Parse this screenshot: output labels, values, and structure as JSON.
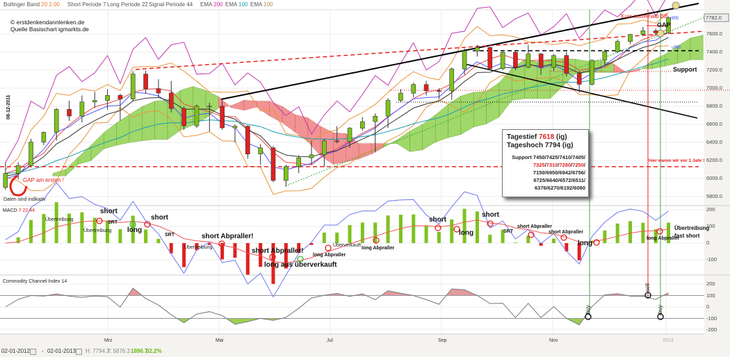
{
  "header": {
    "bollinger": {
      "label": "Bollinger Band",
      "period": "20",
      "dev": "2.00"
    },
    "short_periode": {
      "label": "Short Periode",
      "value": "7"
    },
    "long_periode": {
      "label": "Long Periode",
      "value": "22"
    },
    "signal_periode": {
      "label": "Signal Periode",
      "value": "44"
    },
    "ema1": {
      "label": "EMA",
      "value": "200"
    },
    "ema2": {
      "label": "EMA",
      "value": "100"
    },
    "ema3": {
      "label": "EMA",
      "value": "100"
    }
  },
  "credit": {
    "line1": "© erstdenkendannlenken.de",
    "line2": "Quelle Basischart igmarkts.de"
  },
  "infobox": {
    "tagestief_label": "Tagestief",
    "tagestief_value": "7618",
    "tagestief_suffix": "(ig)",
    "tageshoch": "Tageshoch 7794 (ig)",
    "support_label": "Support",
    "support_line1": "7450/7425/7410/7405/",
    "support_line2_red": [
      "7325",
      "7310",
      "7280",
      "7250"
    ],
    "support_line3": "7150/6950/6942/6756/",
    "support_line4": "6725/6640/6572/6511/",
    "support_line5": "6376/6270/6192/6080"
  },
  "annotations_main": {
    "kurs_ausserhalb": "Kurs außerhalb BB",
    "obb": "oBB",
    "gap": "GAP",
    "ubb": "uBB",
    "support": "Support",
    "gap_am_ersten": "GAP am ersten !",
    "daten_indikativ": "Daten sind indikativ",
    "date_marker": "08-12-2011",
    "vor_1_jahr": "hier waren wir vor 1 Jahr !"
  },
  "macd_panel": {
    "title": "MACD",
    "p1": "7",
    "p2": "22",
    "p3": "44",
    "annotations": [
      "Übertreibung",
      "Übertreibung",
      "short",
      "SRT",
      "long",
      "short",
      "SRT",
      "short Abpraller!",
      "Übertreibung",
      "short Abpraller!",
      "long aus überverkauft",
      "Überverkauft",
      "long Abpraller",
      "long Abpraller",
      "short",
      "long",
      "short",
      "SRT",
      "short Abpraller",
      "short Abpraller",
      "long",
      "Übertreibung",
      "fast short",
      "long Abpraller"
    ]
  },
  "cci_panel": {
    "title": "Commodity Channel Index",
    "period": "14",
    "signals": [
      "buy",
      "sell",
      "buy"
    ]
  },
  "footer": {
    "from": "02-01-2012",
    "sep": "-",
    "to": "02-01-2013",
    "high": "H: 7794.3",
    "low": "T: 5876.3",
    "diff": "1896.7",
    "pct": "32.2%"
  },
  "colors": {
    "up": "#7dc21e",
    "down": "#e02020",
    "macd_line": "#6f78f0",
    "signal_line": "#ee5555",
    "bb": "#e8943a",
    "ema200": "#c038b0",
    "ema100": "#1a9bb0"
  },
  "chart_data": {
    "type": "candlestick",
    "price_axis": {
      "ticks": [
        "7600.0",
        "7400.0",
        "7200.0",
        "7000.0",
        "6800.0",
        "6600.0",
        "6400.0",
        "6200.0",
        "6000.0",
        "5800.0"
      ],
      "last_price": "7782.0",
      "range": [
        5800,
        7900
      ]
    },
    "x_ticks": [
      "Mrz",
      "Mai",
      "Jul",
      "Sep",
      "Nov",
      "2013"
    ],
    "dates": [
      "2012-01-02",
      "2012-01-09",
      "2012-01-16",
      "2012-01-23",
      "2012-01-30",
      "2012-02-06",
      "2012-02-13",
      "2012-02-20",
      "2012-02-27",
      "2012-03-05",
      "2012-03-12",
      "2012-03-19",
      "2012-03-26",
      "2012-04-02",
      "2012-04-09",
      "2012-04-16",
      "2012-04-23",
      "2012-04-30",
      "2012-05-07",
      "2012-05-14",
      "2012-05-21",
      "2012-05-28",
      "2012-06-04",
      "2012-06-11",
      "2012-06-18",
      "2012-06-25",
      "2012-07-02",
      "2012-07-09",
      "2012-07-16",
      "2012-07-23",
      "2012-07-30",
      "2012-08-06",
      "2012-08-13",
      "2012-08-20",
      "2012-08-27",
      "2012-09-03",
      "2012-09-10",
      "2012-09-17",
      "2012-09-24",
      "2012-10-01",
      "2012-10-08",
      "2012-10-15",
      "2012-10-22",
      "2012-10-29",
      "2012-11-05",
      "2012-11-12",
      "2012-11-19",
      "2012-11-26",
      "2012-12-03",
      "2012-12-10",
      "2012-12-17",
      "2012-12-24",
      "2012-12-31"
    ],
    "ohlc": [
      [
        5900,
        6180,
        5876,
        6057
      ],
      [
        6057,
        6180,
        5990,
        6143
      ],
      [
        6143,
        6440,
        6140,
        6404
      ],
      [
        6404,
        6520,
        6370,
        6512
      ],
      [
        6512,
        6780,
        6420,
        6766
      ],
      [
        6766,
        6860,
        6640,
        6692
      ],
      [
        6692,
        6920,
        6620,
        6848
      ],
      [
        6848,
        6960,
        6780,
        6864
      ],
      [
        6864,
        6990,
        6760,
        6921
      ],
      [
        6921,
        6940,
        6640,
        6880
      ],
      [
        6880,
        7190,
        6860,
        7157
      ],
      [
        7157,
        7194,
        6940,
        6995
      ],
      [
        6995,
        7100,
        6900,
        6947
      ],
      [
        6947,
        7080,
        6730,
        6775
      ],
      [
        6775,
        6800,
        6540,
        6583
      ],
      [
        6583,
        6820,
        6560,
        6801
      ],
      [
        6801,
        6840,
        6520,
        6801
      ],
      [
        6801,
        6860,
        6540,
        6561
      ],
      [
        6561,
        6600,
        6400,
        6579
      ],
      [
        6579,
        6590,
        6220,
        6271
      ],
      [
        6271,
        6380,
        6150,
        6339
      ],
      [
        6339,
        6360,
        5960,
        5978
      ],
      [
        5978,
        6150,
        5914,
        6131
      ],
      [
        6131,
        6260,
        6060,
        6229
      ],
      [
        6229,
        6420,
        6150,
        6263
      ],
      [
        6263,
        6440,
        6130,
        6416
      ],
      [
        6416,
        6580,
        6390,
        6410
      ],
      [
        6410,
        6570,
        6340,
        6557
      ],
      [
        6557,
        6680,
        6530,
        6630
      ],
      [
        6630,
        6720,
        6290,
        6690
      ],
      [
        6690,
        6890,
        6560,
        6865
      ],
      [
        6865,
        6990,
        6840,
        6945
      ],
      [
        6945,
        7060,
        6900,
        7041
      ],
      [
        7041,
        7080,
        6920,
        6971
      ],
      [
        6971,
        7000,
        6880,
        6970
      ],
      [
        6970,
        7230,
        6870,
        7214
      ],
      [
        7214,
        7440,
        7150,
        7412
      ],
      [
        7412,
        7480,
        7350,
        7451
      ],
      [
        7451,
        7460,
        7200,
        7216
      ],
      [
        7216,
        7420,
        7200,
        7398
      ],
      [
        7398,
        7410,
        7200,
        7232
      ],
      [
        7232,
        7480,
        7220,
        7380
      ],
      [
        7380,
        7390,
        7150,
        7231
      ],
      [
        7231,
        7380,
        7190,
        7363
      ],
      [
        7363,
        7400,
        7130,
        7163
      ],
      [
        7163,
        7190,
        6950,
        7043
      ],
      [
        7043,
        7320,
        7030,
        7309
      ],
      [
        7309,
        7430,
        7260,
        7405
      ],
      [
        7405,
        7540,
        7390,
        7518
      ],
      [
        7518,
        7600,
        7490,
        7596
      ],
      [
        7596,
        7680,
        7580,
        7636
      ],
      [
        7636,
        7660,
        7580,
        7612
      ],
      [
        7612,
        7794,
        7600,
        7779
      ]
    ],
    "macd_axis": {
      "ticks": [
        "200",
        "100",
        "0",
        "-100"
      ]
    },
    "cci_axis": {
      "ticks": [
        "200",
        "100",
        "0",
        "-100",
        "-200"
      ],
      "levels": [
        100,
        -100
      ]
    }
  }
}
